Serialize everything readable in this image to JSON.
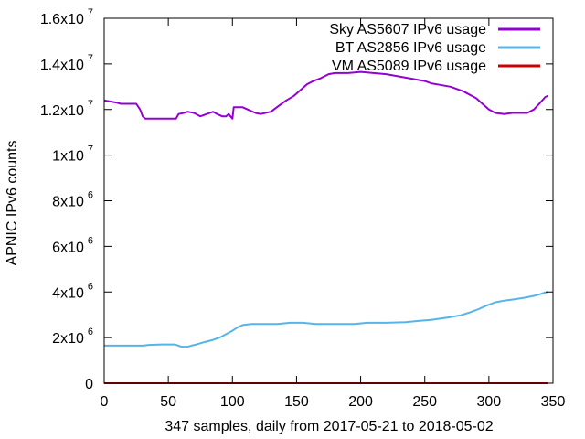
{
  "chart_data": {
    "type": "line",
    "title": "",
    "xlabel": "347 samples, daily from 2017-05-21 to 2018-05-02",
    "ylabel": "APNIC IPv6 counts",
    "xlim": [
      0,
      350
    ],
    "ylim": [
      0,
      16000000
    ],
    "grid": false,
    "legend_position": "top-right",
    "x_ticks": [
      {
        "value": 0,
        "label": "0"
      },
      {
        "value": 50,
        "label": "50"
      },
      {
        "value": 100,
        "label": "100"
      },
      {
        "value": 150,
        "label": "150"
      },
      {
        "value": 200,
        "label": "200"
      },
      {
        "value": 250,
        "label": "250"
      },
      {
        "value": 300,
        "label": "300"
      },
      {
        "value": 350,
        "label": "350"
      }
    ],
    "y_ticks": [
      {
        "value": 0,
        "mantissa": "0",
        "exponent": ""
      },
      {
        "value": 2000000,
        "mantissa": "2x10",
        "exponent": "6"
      },
      {
        "value": 4000000,
        "mantissa": "4x10",
        "exponent": "6"
      },
      {
        "value": 6000000,
        "mantissa": "6x10",
        "exponent": "6"
      },
      {
        "value": 8000000,
        "mantissa": "8x10",
        "exponent": "6"
      },
      {
        "value": 10000000,
        "mantissa": "1x10",
        "exponent": "7"
      },
      {
        "value": 12000000,
        "mantissa": "1.2x10",
        "exponent": "7"
      },
      {
        "value": 14000000,
        "mantissa": "1.4x10",
        "exponent": "7"
      },
      {
        "value": 16000000,
        "mantissa": "1.6x10",
        "exponent": "7"
      }
    ],
    "series": [
      {
        "name": "Sky AS5607 IPv6 usage",
        "color": "#9400d3",
        "points": [
          [
            0,
            12400000
          ],
          [
            5,
            12350000
          ],
          [
            10,
            12300000
          ],
          [
            13,
            12250000
          ],
          [
            18,
            12250000
          ],
          [
            25,
            12250000
          ],
          [
            28,
            12000000
          ],
          [
            30,
            11700000
          ],
          [
            32,
            11600000
          ],
          [
            40,
            11600000
          ],
          [
            50,
            11600000
          ],
          [
            56,
            11600000
          ],
          [
            58,
            11800000
          ],
          [
            62,
            11850000
          ],
          [
            65,
            11900000
          ],
          [
            70,
            11850000
          ],
          [
            75,
            11700000
          ],
          [
            80,
            11800000
          ],
          [
            85,
            11900000
          ],
          [
            88,
            11800000
          ],
          [
            92,
            11700000
          ],
          [
            95,
            11700000
          ],
          [
            97,
            11800000
          ],
          [
            100,
            11600000
          ],
          [
            101,
            12100000
          ],
          [
            104,
            12100000
          ],
          [
            108,
            12100000
          ],
          [
            112,
            12000000
          ],
          [
            118,
            11850000
          ],
          [
            122,
            11800000
          ],
          [
            130,
            11900000
          ],
          [
            137,
            12200000
          ],
          [
            142,
            12400000
          ],
          [
            148,
            12600000
          ],
          [
            153,
            12850000
          ],
          [
            158,
            13100000
          ],
          [
            163,
            13250000
          ],
          [
            168,
            13350000
          ],
          [
            175,
            13550000
          ],
          [
            180,
            13600000
          ],
          [
            190,
            13600000
          ],
          [
            200,
            13650000
          ],
          [
            210,
            13600000
          ],
          [
            220,
            13550000
          ],
          [
            230,
            13450000
          ],
          [
            240,
            13350000
          ],
          [
            250,
            13250000
          ],
          [
            255,
            13150000
          ],
          [
            260,
            13100000
          ],
          [
            270,
            13000000
          ],
          [
            280,
            12800000
          ],
          [
            290,
            12500000
          ],
          [
            295,
            12250000
          ],
          [
            300,
            12000000
          ],
          [
            305,
            11850000
          ],
          [
            312,
            11800000
          ],
          [
            318,
            11850000
          ],
          [
            325,
            11850000
          ],
          [
            330,
            11850000
          ],
          [
            335,
            12000000
          ],
          [
            340,
            12300000
          ],
          [
            344,
            12550000
          ],
          [
            346,
            12600000
          ]
        ]
      },
      {
        "name": "BT AS2856 IPv6 usage",
        "color": "#56b4e9",
        "points": [
          [
            0,
            1650000
          ],
          [
            10,
            1650000
          ],
          [
            20,
            1650000
          ],
          [
            30,
            1650000
          ],
          [
            35,
            1680000
          ],
          [
            45,
            1700000
          ],
          [
            55,
            1700000
          ],
          [
            58,
            1650000
          ],
          [
            60,
            1600000
          ],
          [
            65,
            1600000
          ],
          [
            68,
            1650000
          ],
          [
            72,
            1700000
          ],
          [
            78,
            1800000
          ],
          [
            85,
            1900000
          ],
          [
            90,
            2000000
          ],
          [
            95,
            2150000
          ],
          [
            100,
            2300000
          ],
          [
            104,
            2450000
          ],
          [
            108,
            2550000
          ],
          [
            115,
            2600000
          ],
          [
            125,
            2600000
          ],
          [
            135,
            2600000
          ],
          [
            145,
            2650000
          ],
          [
            155,
            2650000
          ],
          [
            165,
            2600000
          ],
          [
            180,
            2600000
          ],
          [
            195,
            2600000
          ],
          [
            205,
            2650000
          ],
          [
            220,
            2650000
          ],
          [
            235,
            2680000
          ],
          [
            245,
            2730000
          ],
          [
            255,
            2780000
          ],
          [
            262,
            2830000
          ],
          [
            270,
            2900000
          ],
          [
            278,
            2980000
          ],
          [
            285,
            3100000
          ],
          [
            292,
            3250000
          ],
          [
            298,
            3400000
          ],
          [
            305,
            3550000
          ],
          [
            312,
            3620000
          ],
          [
            320,
            3680000
          ],
          [
            328,
            3750000
          ],
          [
            335,
            3830000
          ],
          [
            340,
            3900000
          ],
          [
            344,
            3980000
          ],
          [
            346,
            4000000
          ]
        ]
      },
      {
        "name": "VM AS5089 IPv6 usage",
        "color": "#cc0000",
        "points": [
          [
            0,
            0
          ],
          [
            100,
            0
          ],
          [
            200,
            0
          ],
          [
            300,
            0
          ],
          [
            346,
            0
          ]
        ]
      }
    ]
  }
}
